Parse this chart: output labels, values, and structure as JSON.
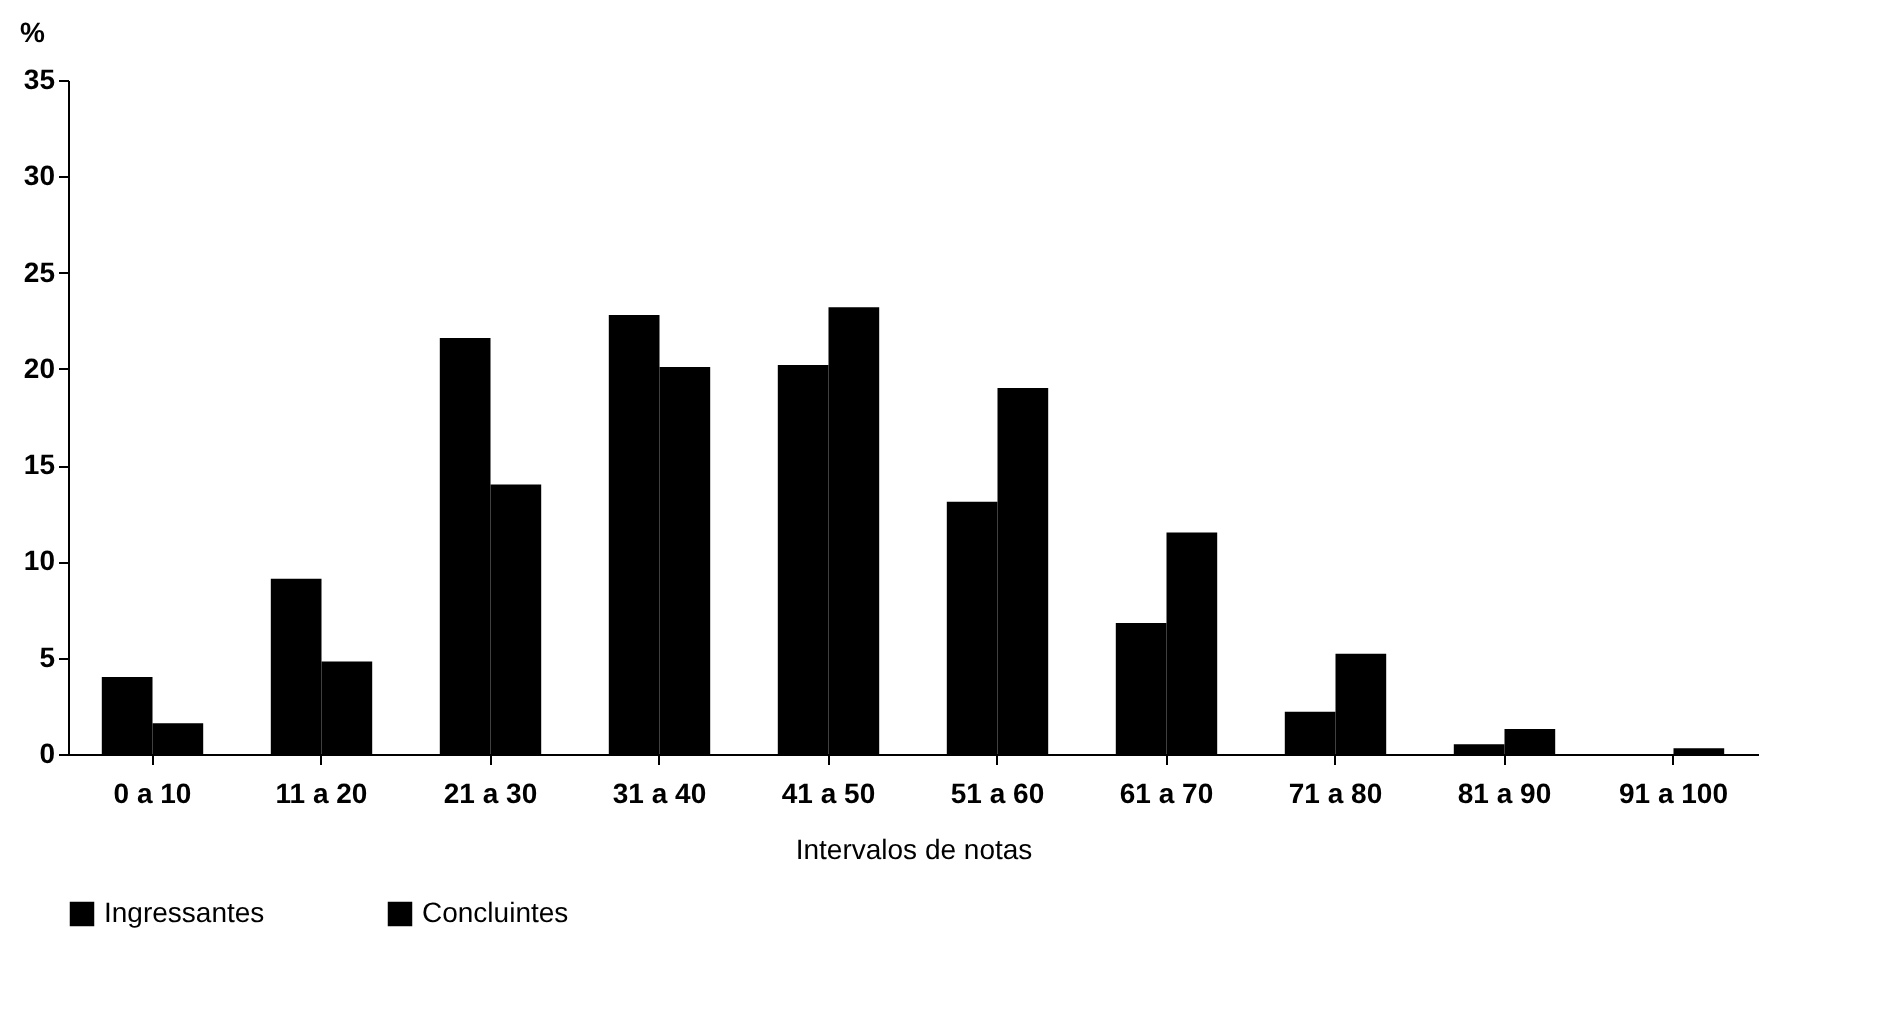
{
  "chart_data": {
    "type": "bar",
    "ylabel": "%",
    "xlabel": "Intervalos de notas",
    "categories": [
      "0 a 10",
      "11 a 20",
      "21 a 30",
      "31 a 40",
      "41 a 50",
      "51 a 60",
      "61 a 70",
      "71 a 80",
      "81 a 90",
      "91 a 100"
    ],
    "series": [
      {
        "name": "Ingressantes",
        "color": "#000000",
        "values": [
          4.0,
          9.1,
          21.6,
          22.8,
          20.2,
          13.1,
          6.8,
          2.2,
          0.5,
          0
        ]
      },
      {
        "name": "Concluintes",
        "color": "#000000",
        "values": [
          1.6,
          4.8,
          14.0,
          20.1,
          23.2,
          19.0,
          11.5,
          5.2,
          1.3,
          0.3
        ]
      }
    ],
    "ylim": [
      0,
      35
    ],
    "yticks": [
      0,
      5,
      10,
      15,
      20,
      25,
      30,
      35
    ],
    "legend": "bottom"
  }
}
